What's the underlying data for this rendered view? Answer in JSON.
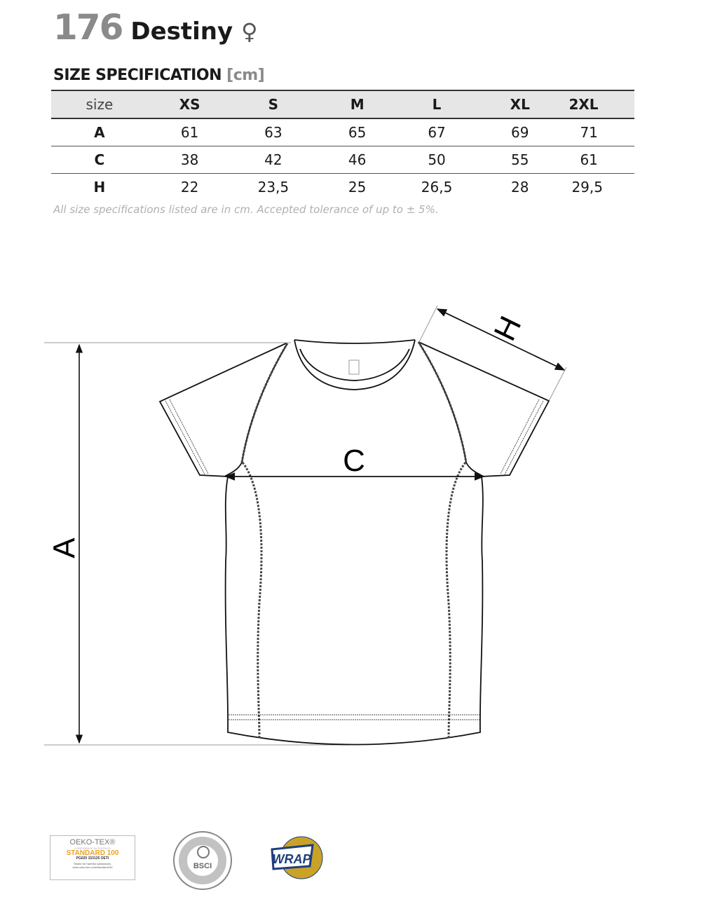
{
  "header": {
    "number": "176",
    "name": "Destiny",
    "gender_symbol": "♀"
  },
  "section": {
    "title": "SIZE SPECIFICATION",
    "unit": "[cm]"
  },
  "table": {
    "columns": [
      "size",
      "XS",
      "S",
      "M",
      "L",
      "XL",
      "2XL"
    ],
    "rows": [
      {
        "label": "A",
        "values": [
          "61",
          "63",
          "65",
          "67",
          "69",
          "71"
        ]
      },
      {
        "label": "C",
        "values": [
          "38",
          "42",
          "46",
          "50",
          "55",
          "61"
        ]
      },
      {
        "label": "H",
        "values": [
          "22",
          "23,5",
          "25",
          "26,5",
          "28",
          "29,5"
        ]
      }
    ]
  },
  "note": "All size specifications listed are in cm. Accepted tolerance of up to ± 5%.",
  "diagram": {
    "label_a": "A",
    "label_c": "C",
    "label_h": "H"
  },
  "logos": {
    "oeko_tex": {
      "line1": "OEKO-TEX®",
      "line2": "CONFIDENCE IN TEXTILES",
      "line3": "STANDARD 100",
      "line4": "PG020 153125 OETI",
      "line5": "Tested for harmful substances.",
      "line6": "www.oeko-tex.com/standard100"
    },
    "bsci": {
      "text": "BSCI",
      "ring": "BUSINESS SOCIAL COMPLIANCE INITIATIVE",
      "member": "Member of BSCI"
    },
    "wrap": {
      "text": "WRAP",
      "ring_top": "WORLDWIDE RESPONSIBLE",
      "ring_bottom": "ACCREDITED PRODUCTION"
    }
  }
}
